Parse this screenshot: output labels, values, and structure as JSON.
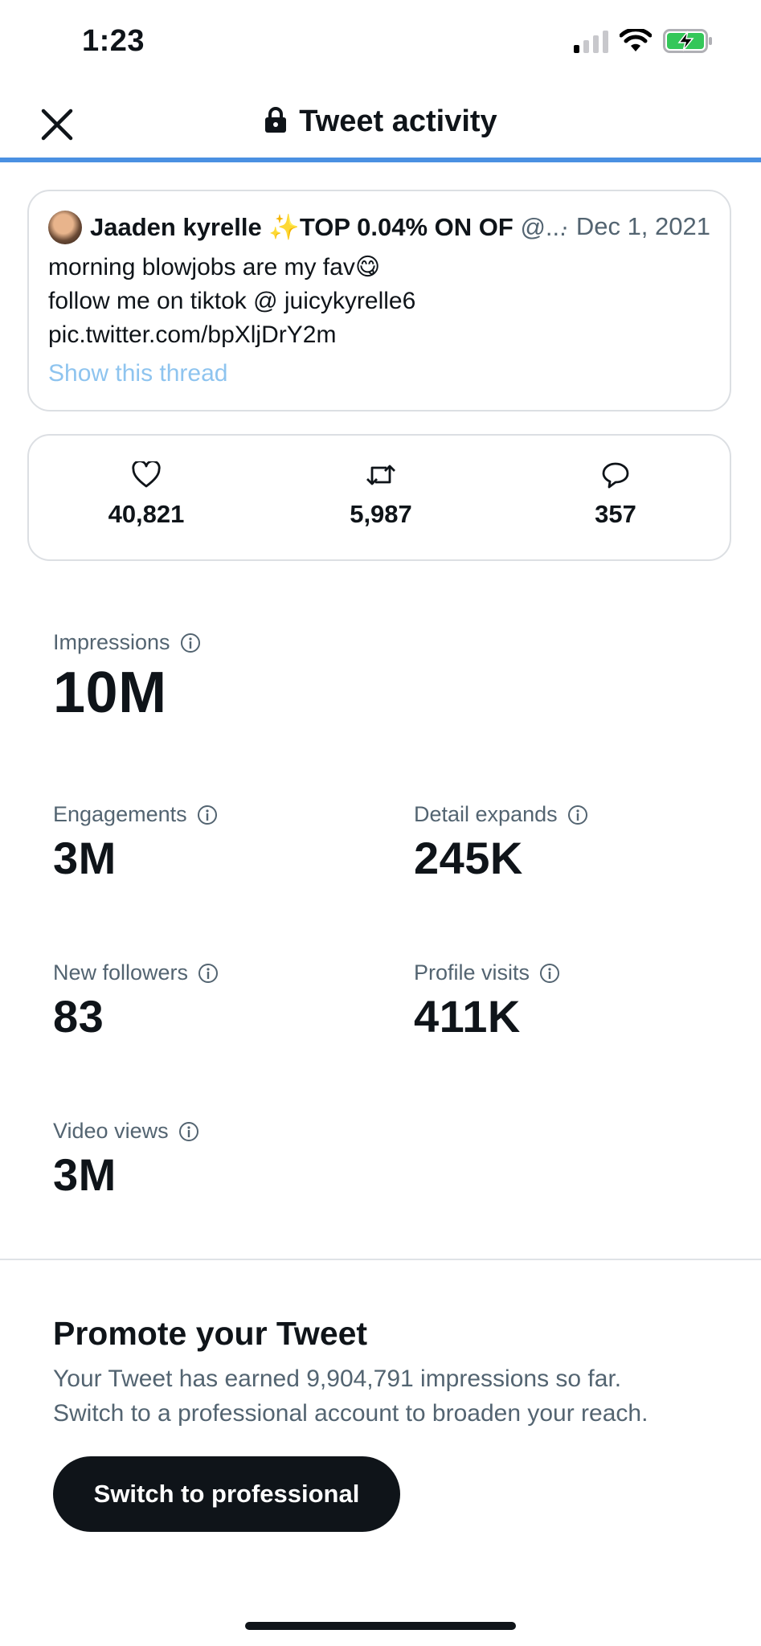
{
  "status_bar": {
    "time": "1:23"
  },
  "header": {
    "title": "Tweet activity"
  },
  "tweet": {
    "author_name": "Jaaden kyrelle ✨TOP 0.04% ON OF",
    "author_handle": "@...",
    "date": "· Dec 1, 2021",
    "lines": [
      "morning blowjobs are my fav😋",
      "follow me on tiktok @ juicykyrelle6",
      "pic.twitter.com/bpXljDrY2m"
    ],
    "thread_link": "Show this thread"
  },
  "engagement": {
    "likes": "40,821",
    "retweets": "5,987",
    "replies": "357"
  },
  "metrics": {
    "impressions": {
      "label": "Impressions",
      "value": "10M"
    },
    "engagements": {
      "label": "Engagements",
      "value": "3M"
    },
    "detail_expands": {
      "label": "Detail expands",
      "value": "245K"
    },
    "new_followers": {
      "label": "New followers",
      "value": "83"
    },
    "profile_visits": {
      "label": "Profile visits",
      "value": "411K"
    },
    "video_views": {
      "label": "Video views",
      "value": "3M"
    }
  },
  "promote": {
    "title": "Promote your Tweet",
    "line1": "Your Tweet has earned 9,904,791 impressions so far.",
    "line2": "Switch to a professional account to broaden your reach.",
    "button": "Switch to professional"
  },
  "icons": {
    "close": "close-icon",
    "lock": "lock-icon",
    "like": "heart-icon",
    "retweet": "retweet-icon",
    "reply": "reply-icon",
    "info": "info-icon"
  },
  "colors": {
    "accent": "#4a90e2",
    "link": "#8ec4ef",
    "battery": "#34c759",
    "text": "#0f1419",
    "muted": "#536471"
  }
}
